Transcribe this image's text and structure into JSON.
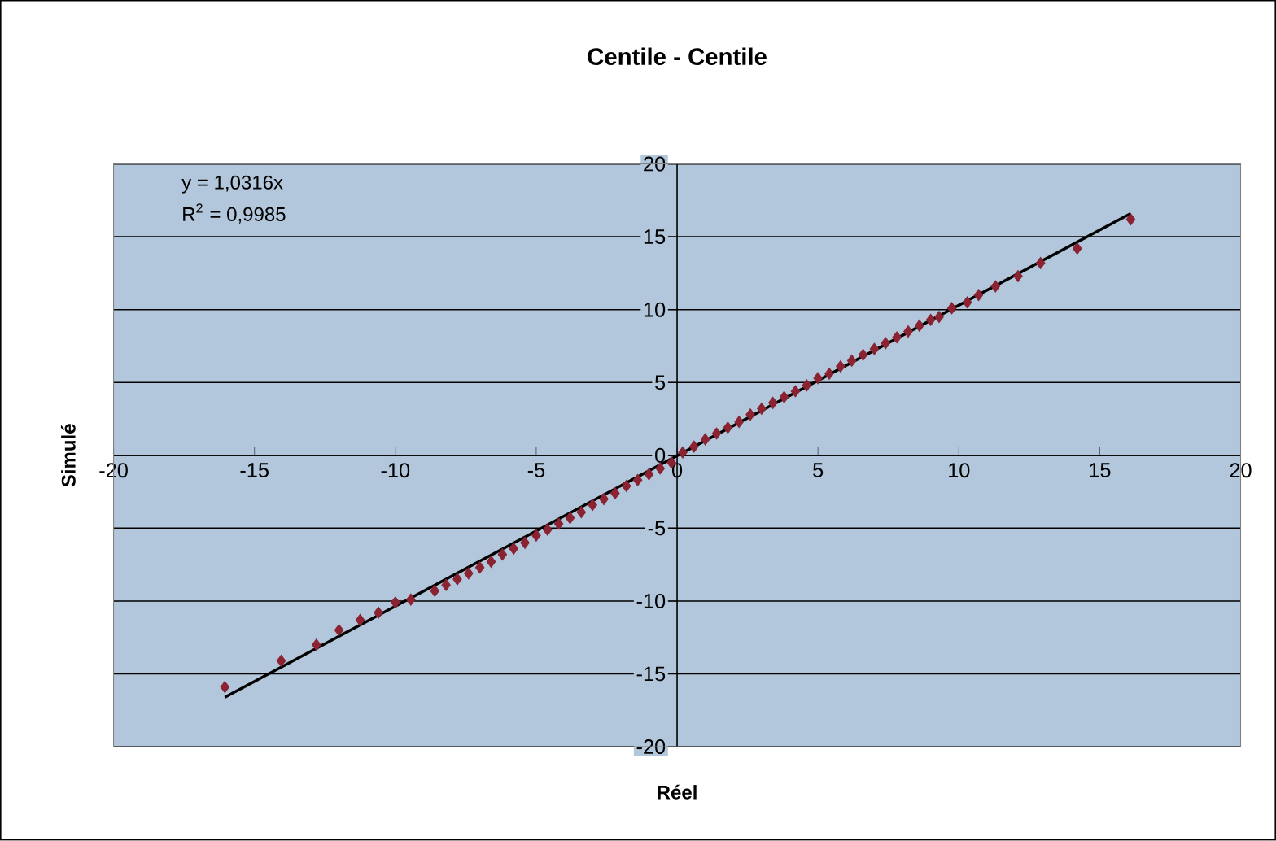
{
  "chart_data": {
    "type": "scatter",
    "title": "Centile - Centile",
    "xlabel": "Réel",
    "ylabel": "Simulé",
    "annotations": [
      "y = 1,0316x",
      "R$^{2}$ = 0,9985"
    ],
    "xlim": [
      -20,
      20
    ],
    "ylim": [
      -20,
      20
    ],
    "xticks": [
      -20,
      -15,
      -10,
      -5,
      0,
      5,
      10,
      15,
      20
    ],
    "yticks": [
      -20,
      -15,
      -10,
      -5,
      0,
      5,
      10,
      15,
      20
    ],
    "grid": "y",
    "marker": "diamond",
    "series": [
      {
        "type": "scatter",
        "color": "#8b2332",
        "x": [
          -16.05,
          -14.05,
          -12.8,
          -12.0,
          -11.25,
          -10.6,
          -10.0,
          -9.45,
          -8.6,
          -8.2,
          -7.8,
          -7.4,
          -7.0,
          -6.6,
          -6.2,
          -5.8,
          -5.4,
          -5.0,
          -4.6,
          -4.2,
          -3.8,
          -3.4,
          -3.0,
          -2.6,
          -2.2,
          -1.8,
          -1.4,
          -1.0,
          -0.6,
          -0.2,
          0.2,
          0.6,
          1.0,
          1.4,
          1.8,
          2.2,
          2.6,
          3.0,
          3.4,
          3.8,
          4.2,
          4.6,
          5.0,
          5.4,
          5.8,
          6.2,
          6.6,
          7.0,
          7.4,
          7.8,
          8.2,
          8.6,
          9.0,
          9.3,
          9.75,
          10.3,
          10.7,
          11.3,
          12.1,
          12.9,
          14.2,
          16.1
        ],
        "values": [
          -15.9,
          -14.1,
          -13.0,
          -12.0,
          -11.3,
          -10.8,
          -10.1,
          -9.9,
          -9.3,
          -8.9,
          -8.5,
          -8.1,
          -7.7,
          -7.3,
          -6.8,
          -6.4,
          -6.0,
          -5.5,
          -5.1,
          -4.7,
          -4.3,
          -3.9,
          -3.4,
          -3.0,
          -2.6,
          -2.1,
          -1.7,
          -1.3,
          -0.9,
          -0.5,
          0.2,
          0.6,
          1.1,
          1.5,
          1.9,
          2.3,
          2.8,
          3.2,
          3.6,
          4.0,
          4.4,
          4.8,
          5.3,
          5.6,
          6.1,
          6.5,
          6.9,
          7.3,
          7.7,
          8.1,
          8.5,
          8.9,
          9.3,
          9.5,
          10.1,
          10.5,
          11.0,
          11.6,
          12.3,
          13.2,
          14.2,
          16.2
        ]
      },
      {
        "type": "line",
        "marker": "none",
        "color": "#000000",
        "x": [
          -16.05,
          16.1
        ],
        "values": [
          -16.6,
          16.6
        ]
      }
    ]
  }
}
